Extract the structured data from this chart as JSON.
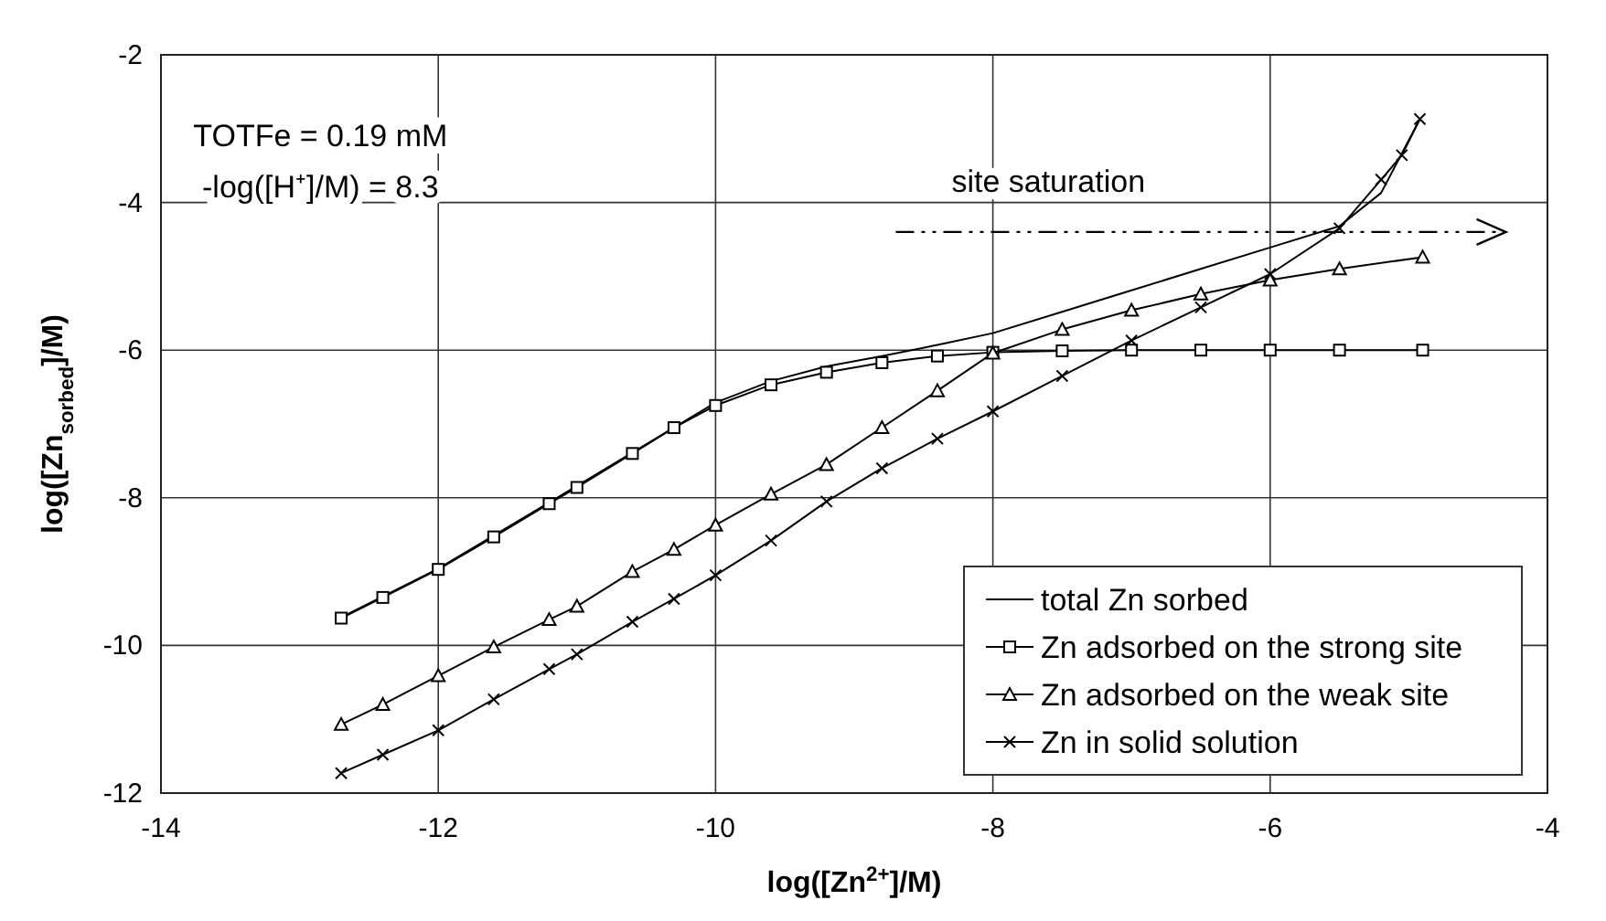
{
  "chart_data": {
    "type": "line",
    "xlabel": "log([Zn$^{2+}$]/M)",
    "ylabel": "log([Zn$_{sorbed}$]/M)",
    "xlim": [
      -14,
      -4
    ],
    "xticks": [
      -14,
      -12,
      -10,
      -8,
      -6,
      -4
    ],
    "ylim": [
      -12,
      -2
    ],
    "yticks": [
      -12,
      -10,
      -8,
      -6,
      -4,
      -2
    ],
    "grid": true,
    "legend": "bottom right",
    "line_style": "solid",
    "annotations": [
      "TOTFe = 0.19 mM",
      "-log([H⁺]/M) = 8.3"
    ],
    "ref_lines": [
      {
        "axis": "y",
        "value": -4.4,
        "label": "site saturation",
        "line_style": "dashed",
        "color": "#000000"
      }
    ],
    "series": [
      {
        "name": "total Zn sorbed",
        "color": "#000000",
        "marker": "none",
        "x": [
          -12.7,
          -12,
          -11,
          -10,
          -9.6,
          -9.2,
          -8.8,
          -8.4,
          -8,
          -7.5,
          -7,
          -6.5,
          -6,
          -5.5,
          -5.2,
          -4.92
        ],
        "values": [
          -9.62,
          -8.96,
          -7.84,
          -6.71,
          -6.42,
          -6.22,
          -6.08,
          -5.93,
          -5.77,
          -5.48,
          -5.19,
          -4.9,
          -4.61,
          -4.32,
          -3.87,
          -2.87
        ]
      },
      {
        "name": "Zn adsorbed on the strong site",
        "color": "#000000",
        "marker": "square",
        "x": [
          -12.7,
          -12.4,
          -12,
          -11.6,
          -11.2,
          -11,
          -10.6,
          -10.3,
          -10,
          -9.6,
          -9.2,
          -8.8,
          -8.4,
          -8,
          -7.5,
          -7,
          -6.5,
          -6,
          -5.5,
          -4.9
        ],
        "values": [
          -9.63,
          -9.35,
          -8.97,
          -8.53,
          -8.08,
          -7.86,
          -7.4,
          -7.05,
          -6.75,
          -6.47,
          -6.3,
          -6.17,
          -6.08,
          -6.03,
          -6.01,
          -6,
          -6,
          -6,
          -6,
          -6
        ]
      },
      {
        "name": "Zn adsorbed on the weak site",
        "color": "#000000",
        "marker": "triangle",
        "x": [
          -12.7,
          -12.4,
          -12,
          -11.6,
          -11.2,
          -11,
          -10.6,
          -10.3,
          -10,
          -9.6,
          -9.2,
          -8.8,
          -8.4,
          -8,
          -7.5,
          -7,
          -6.5,
          -6,
          -5.5,
          -4.9
        ],
        "values": [
          -11.07,
          -10.8,
          -10.41,
          -10.02,
          -9.65,
          -9.47,
          -9,
          -8.7,
          -8.37,
          -7.95,
          -7.55,
          -7.05,
          -6.55,
          -6.04,
          -5.72,
          -5.46,
          -5.24,
          -5.05,
          -4.9,
          -4.74
        ]
      },
      {
        "name": "Zn in solid solution",
        "color": "#000000",
        "marker": "cross",
        "x": [
          -12.7,
          -12.4,
          -12,
          -11.6,
          -11.2,
          -11,
          -10.6,
          -10.3,
          -10,
          -9.6,
          -9.2,
          -8.8,
          -8.4,
          -8,
          -7.5,
          -7,
          -6.5,
          -6,
          -5.5,
          -5.2,
          -5.05,
          -4.92
        ],
        "values": [
          -11.73,
          -11.48,
          -11.15,
          -10.73,
          -10.32,
          -10.12,
          -9.68,
          -9.37,
          -9.05,
          -8.58,
          -8.05,
          -7.6,
          -7.2,
          -6.83,
          -6.35,
          -5.87,
          -5.42,
          -4.97,
          -4.35,
          -3.69,
          -3.36,
          -2.87
        ]
      }
    ]
  }
}
